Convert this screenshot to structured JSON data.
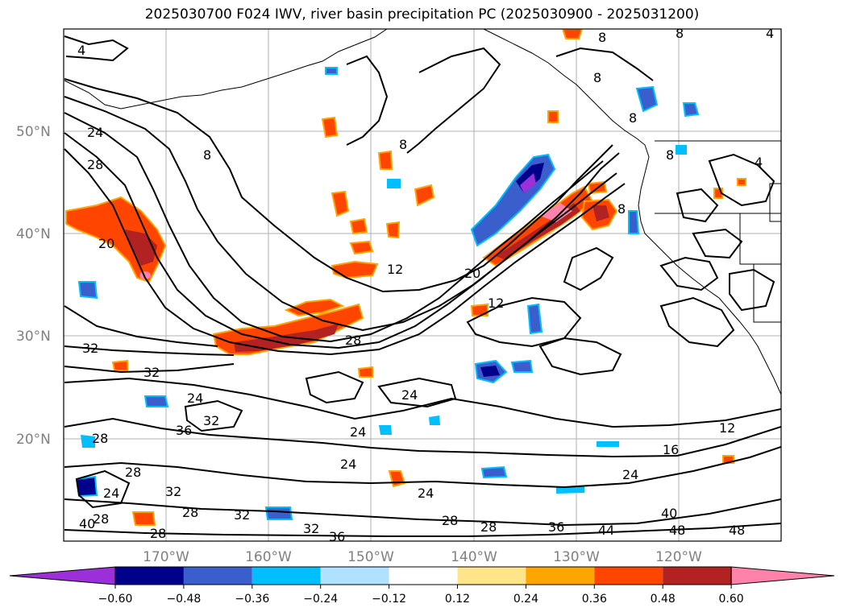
{
  "title": "2025030700 F024 IWV, river basin precipitation PC (2025030900 - 2025031200)",
  "lat_labels": [
    "50°N",
    "40°N",
    "30°N",
    "20°N"
  ],
  "lon_labels": [
    "170°W",
    "160°W",
    "150°W",
    "140°W",
    "130°W",
    "120°W"
  ],
  "colorbar": {
    "ticks": [
      "−0.60",
      "−0.48",
      "−0.36",
      "−0.24",
      "−0.12",
      "0.12",
      "0.24",
      "0.36",
      "0.48",
      "0.60"
    ],
    "colors": [
      "#9b30d9",
      "#00008b",
      "#3a5fcd",
      "#00bfff",
      "#b0e2ff",
      "#ffffff",
      "#ffe58a",
      "#ffa500",
      "#ff4500",
      "#b22222",
      "#ff82ab"
    ]
  },
  "contour_labels": [
    "4",
    "8",
    "8",
    "8",
    "8",
    "4",
    "8",
    "8",
    "8",
    "8",
    "4",
    "24",
    "28",
    "20",
    "12",
    "20",
    "12",
    "28",
    "32",
    "32",
    "24",
    "36",
    "32",
    "24",
    "24",
    "24",
    "24",
    "12",
    "16",
    "24",
    "28",
    "28",
    "24",
    "32",
    "28",
    "28",
    "32",
    "36",
    "28",
    "28",
    "32",
    "36",
    "44",
    "48",
    "48",
    "40",
    "40",
    "28"
  ]
}
